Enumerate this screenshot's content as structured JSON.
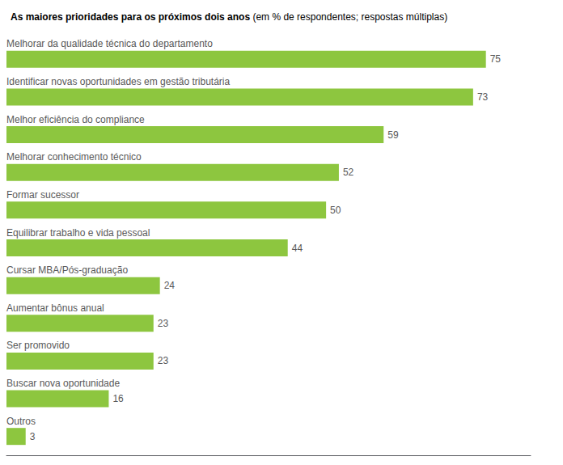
{
  "chart_data": {
    "type": "bar",
    "orientation": "horizontal",
    "title": "As maiores prioridades para os próximos dois anos",
    "subtitle": "(em % de respondentes; respostas múltiplas)",
    "categories": [
      "Melhorar da qualidade técnica do departamento",
      "Identificar novas oportunidades em gestão tributária",
      "Melhor eficiência do compliance",
      "Melhorar conhecimento técnico",
      "Formar sucessor",
      "Equilibrar trabalho e vida pessoal",
      "Cursar MBA/Pós-graduação",
      "Aumentar bônus anual",
      "Ser promovido",
      "Buscar nova oportunidade",
      "Outros"
    ],
    "values": [
      75,
      73,
      59,
      52,
      50,
      44,
      24,
      23,
      23,
      16,
      3
    ],
    "color": "#8DC63F",
    "xlim": [
      0,
      82
    ],
    "data_labels": true,
    "tick_labels": false,
    "grid": false
  }
}
